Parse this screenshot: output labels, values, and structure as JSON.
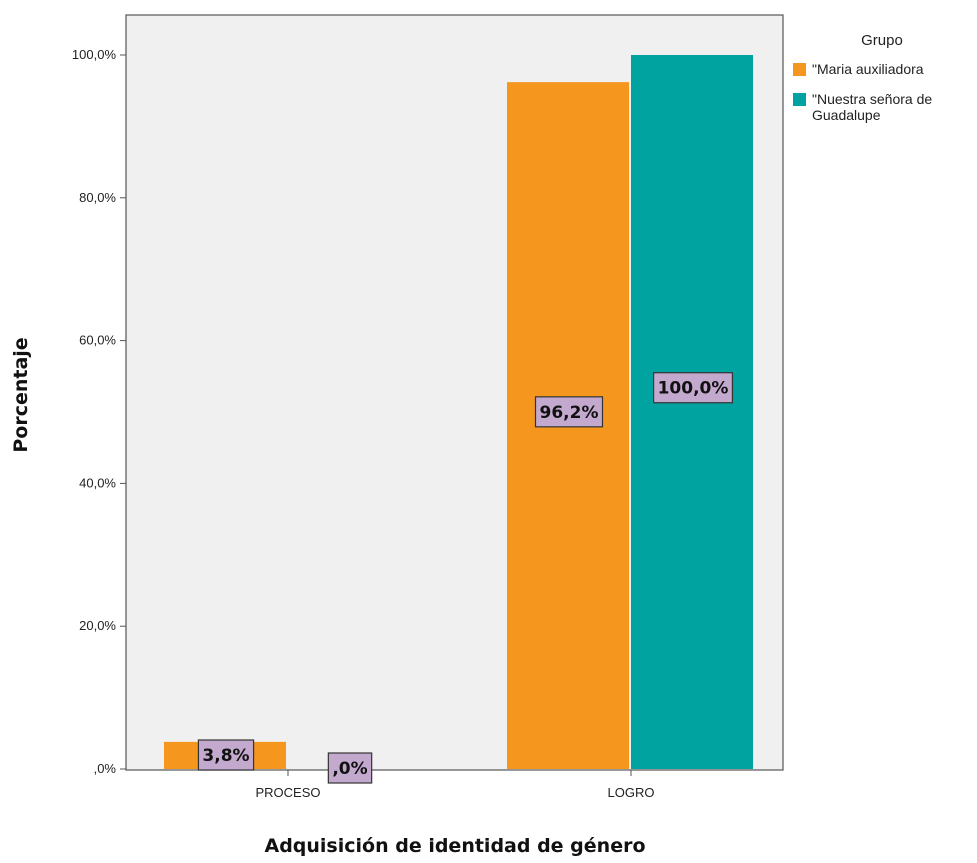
{
  "chart_data": {
    "type": "bar",
    "title": "",
    "xlabel": "Adquisición de identidad de género",
    "ylabel": "Porcentaje",
    "categories": [
      "PROCESO",
      "LOGRO"
    ],
    "ylim": [
      0,
      100
    ],
    "yticks": [
      0,
      20,
      40,
      60,
      80,
      100
    ],
    "ytick_labels": [
      ",0%",
      "20,0%",
      "40,0%",
      "60,0%",
      "80,0%",
      "100,0%"
    ],
    "legend_title": "Grupo",
    "legend_position": "top-right outside plot",
    "grid": false,
    "series": [
      {
        "name": "\"Maria auxiliadora",
        "color": "#f5971e",
        "values": [
          3.8,
          96.2
        ],
        "labels": [
          "3,8%",
          "96,2%"
        ]
      },
      {
        "name": "\"Nuestra señora de Guadalupe",
        "name_lines": [
          "\"Nuestra señora de",
          "Guadalupe"
        ],
        "color": "#00a3a0",
        "values": [
          0.0,
          100.0
        ],
        "labels": [
          ",0%",
          "100,0%"
        ]
      }
    ],
    "colors": {
      "plot_background": "#f0f0f0",
      "label_box": "#c4a9cf"
    }
  }
}
